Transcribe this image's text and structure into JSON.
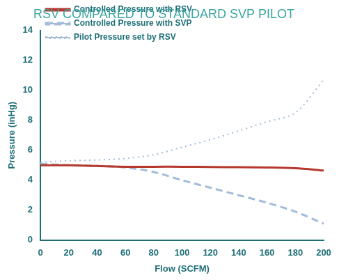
{
  "chart_data": {
    "type": "line",
    "title": "RSV COMPARED TO STANDARD SVP PILOT",
    "x_label": "Flow (SCFM)",
    "y_label": "Pressure (inHg)",
    "x": [
      0,
      20,
      40,
      60,
      80,
      100,
      120,
      140,
      160,
      180,
      200
    ],
    "series": [
      {
        "name": "Controlled Pressure with RSV",
        "color": "#b5382e",
        "line_style": "solid",
        "values": [
          5.0,
          5.0,
          4.95,
          4.9,
          4.9,
          4.9,
          4.88,
          4.87,
          4.85,
          4.8,
          4.65
        ]
      },
      {
        "name": "Controlled Pressure with SVP",
        "color": "#a3bcd9",
        "line_style": "dashed",
        "values": [
          5.1,
          5.0,
          4.95,
          4.85,
          4.55,
          4.0,
          3.5,
          3.0,
          2.5,
          1.9,
          1.1
        ]
      },
      {
        "name": "Pilot Pressure set by RSV",
        "color": "#a3bcd9",
        "line_style": "dotted",
        "values": [
          5.2,
          5.3,
          5.35,
          5.45,
          5.7,
          6.2,
          6.7,
          7.3,
          7.9,
          8.5,
          10.7
        ]
      }
    ],
    "xlim": [
      0,
      200
    ],
    "xticks": [
      0,
      20,
      40,
      60,
      80,
      100,
      120,
      140,
      160,
      180,
      200
    ],
    "ylim": [
      0,
      14
    ],
    "yticks": [
      0,
      2,
      4,
      6,
      8,
      10,
      12,
      14
    ],
    "grid": false,
    "legend": "top-left"
  }
}
